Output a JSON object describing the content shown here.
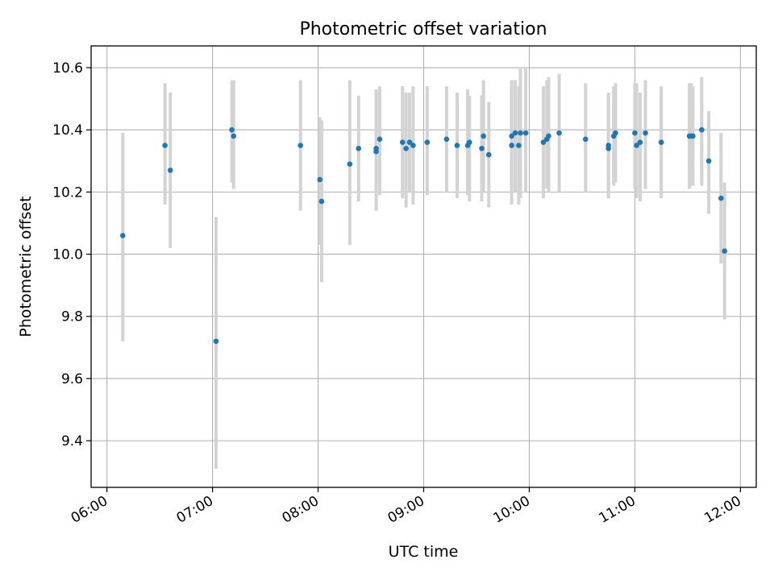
{
  "chart_data": {
    "type": "scatter",
    "title": "Photometric offset variation",
    "xlabel": "UTC time",
    "ylabel": "Photometric offset",
    "xlim": [
      "05:51",
      "12:09"
    ],
    "ylim": [
      9.25,
      10.67
    ],
    "xticks": [
      "06:00",
      "07:00",
      "08:00",
      "09:00",
      "10:00",
      "11:00",
      "12:00"
    ],
    "yticks": [
      "9.4",
      "9.6",
      "9.8",
      "10.0",
      "10.2",
      "10.4",
      "10.6"
    ],
    "grid": true,
    "colors": {
      "point": "#1f77b4",
      "errorbar": "#d3d3d3",
      "grid": "#b0b0b0"
    },
    "series": [
      {
        "x": [
          "06:09",
          "06:33",
          "06:36",
          "07:02",
          "07:11",
          "07:12",
          "07:50",
          "08:01",
          "08:02",
          "08:18",
          "08:23",
          "08:33",
          "08:33",
          "08:35",
          "08:48",
          "08:50",
          "08:52",
          "08:54",
          "09:02",
          "09:13",
          "09:19",
          "09:25",
          "09:26",
          "09:33",
          "09:34",
          "09:37",
          "09:50",
          "09:50",
          "09:52",
          "09:54",
          "09:55",
          "09:58",
          "10:08",
          "10:10",
          "10:11",
          "10:17",
          "10:32",
          "10:45",
          "10:45",
          "10:48",
          "10:49",
          "11:00",
          "11:01",
          "11:03",
          "11:06",
          "11:15",
          "11:31",
          "11:32",
          "11:33",
          "11:38",
          "11:42",
          "11:49",
          "11:51"
        ],
        "y": [
          10.06,
          10.35,
          10.27,
          9.72,
          10.4,
          10.38,
          10.35,
          10.24,
          10.17,
          10.29,
          10.34,
          10.34,
          10.33,
          10.37,
          10.36,
          10.34,
          10.36,
          10.35,
          10.36,
          10.37,
          10.35,
          10.35,
          10.36,
          10.34,
          10.38,
          10.32,
          10.38,
          10.35,
          10.39,
          10.35,
          10.39,
          10.39,
          10.36,
          10.37,
          10.38,
          10.39,
          10.37,
          10.35,
          10.34,
          10.38,
          10.39,
          10.39,
          10.35,
          10.36,
          10.39,
          10.36,
          10.38,
          10.38,
          10.38,
          10.4,
          10.3,
          10.18,
          10.01
        ],
        "yerr_low": [
          9.72,
          10.16,
          10.02,
          9.31,
          10.23,
          10.21,
          10.14,
          10.03,
          9.91,
          10.03,
          10.17,
          10.14,
          10.21,
          10.19,
          10.18,
          10.15,
          10.2,
          10.16,
          10.19,
          10.2,
          10.18,
          10.19,
          10.17,
          10.17,
          10.2,
          10.15,
          10.16,
          10.22,
          10.2,
          10.16,
          10.18,
          10.2,
          10.18,
          10.21,
          10.2,
          10.2,
          10.2,
          10.18,
          10.18,
          10.22,
          10.23,
          10.21,
          10.18,
          10.17,
          10.21,
          10.18,
          10.21,
          10.22,
          10.22,
          10.22,
          10.13,
          9.97,
          9.79
        ],
        "yerr_high": [
          10.39,
          10.55,
          10.52,
          10.12,
          10.56,
          10.56,
          10.56,
          10.44,
          10.43,
          10.56,
          10.51,
          10.53,
          10.53,
          10.54,
          10.54,
          10.52,
          10.52,
          10.54,
          10.54,
          10.54,
          10.52,
          10.53,
          10.51,
          10.51,
          10.56,
          10.49,
          10.56,
          10.54,
          10.56,
          10.54,
          10.6,
          10.6,
          10.54,
          10.56,
          10.57,
          10.58,
          10.55,
          10.52,
          10.51,
          10.54,
          10.55,
          10.55,
          10.55,
          10.52,
          10.56,
          10.54,
          10.55,
          10.55,
          10.54,
          10.57,
          10.46,
          10.39,
          10.23
        ]
      }
    ]
  }
}
